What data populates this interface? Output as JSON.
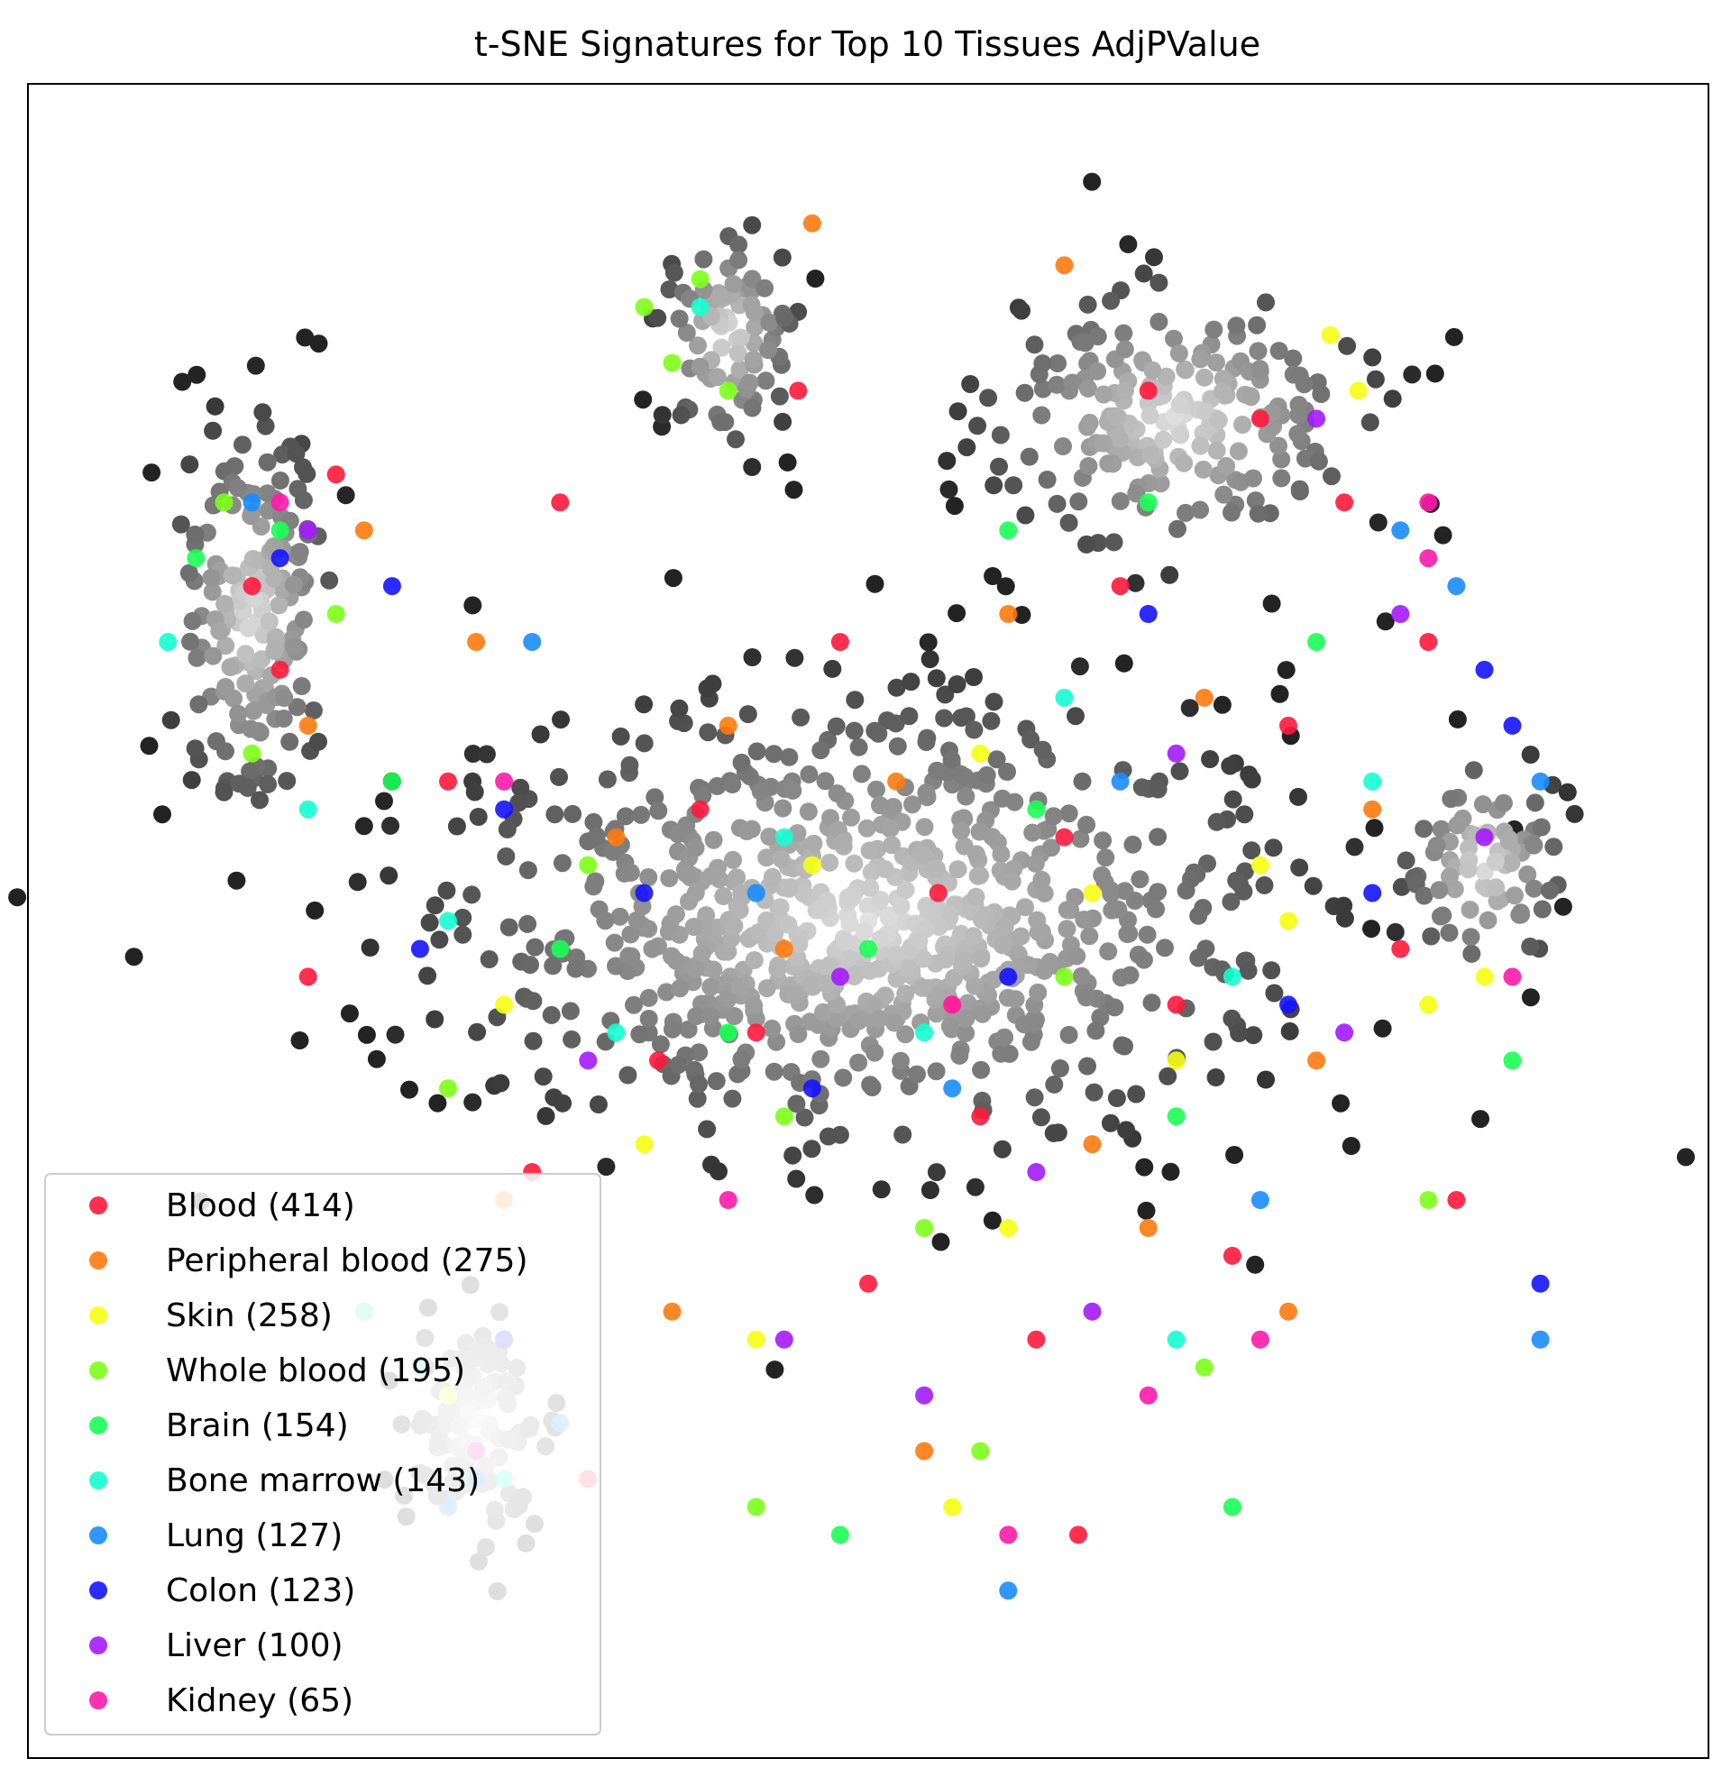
{
  "chart_data": {
    "type": "scatter",
    "title": "t-SNE Signatures for Top 10 Tissues AdjPValue",
    "xlabel": "",
    "ylabel": "",
    "axes_ticks": "none",
    "grid": false,
    "legend_position": "lower-left",
    "background_points": {
      "description_color": "grayscale",
      "note": "untagged signatures shown in gray shades"
    },
    "series": [
      {
        "name": "Blood (414)",
        "color": "#ff1a3c",
        "points": [
          [
            -38,
            32
          ],
          [
            -42,
            18
          ],
          [
            -40,
            -4
          ],
          [
            -22,
            30
          ],
          [
            -24,
            -18
          ],
          [
            -8,
            -8
          ],
          [
            -2,
            20
          ],
          [
            5,
            2
          ],
          [
            8,
            -14
          ],
          [
            14,
            6
          ],
          [
            18,
            24
          ],
          [
            22,
            -6
          ],
          [
            26,
            -24
          ],
          [
            30,
            14
          ],
          [
            34,
            30
          ],
          [
            38,
            -2
          ],
          [
            12,
            -30
          ],
          [
            -15,
            -10
          ],
          [
            -30,
            10
          ],
          [
            40,
            20
          ],
          [
            -5,
            38
          ],
          [
            20,
            38
          ],
          [
            0,
            -26
          ],
          [
            -12,
            8
          ],
          [
            -44,
            24
          ],
          [
            -20,
            -40
          ],
          [
            15,
            -44
          ],
          [
            -36,
            -28
          ],
          [
            28,
            36
          ],
          [
            42,
            -20
          ]
        ]
      },
      {
        "name": "Peripheral blood (275)",
        "color": "#ff7a0e",
        "points": [
          [
            -36,
            28
          ],
          [
            -28,
            20
          ],
          [
            -18,
            6
          ],
          [
            -10,
            14
          ],
          [
            2,
            10
          ],
          [
            6,
            -6
          ],
          [
            10,
            22
          ],
          [
            16,
            -16
          ],
          [
            24,
            16
          ],
          [
            32,
            -10
          ],
          [
            36,
            8
          ],
          [
            -6,
            -2
          ],
          [
            -26,
            -20
          ],
          [
            -14,
            -28
          ],
          [
            4,
            -38
          ],
          [
            -4,
            50
          ],
          [
            14,
            47
          ],
          [
            30,
            -28
          ],
          [
            -40,
            14
          ],
          [
            20,
            -22
          ]
        ]
      },
      {
        "name": "Skin (258)",
        "color": "#f6ff14",
        "points": [
          [
            -26,
            -6
          ],
          [
            -16,
            -16
          ],
          [
            -4,
            4
          ],
          [
            8,
            12
          ],
          [
            16,
            2
          ],
          [
            22,
            -10
          ],
          [
            28,
            4
          ],
          [
            33,
            42
          ],
          [
            35,
            38
          ],
          [
            30,
            0
          ],
          [
            -8,
            -30
          ],
          [
            10,
            -22
          ],
          [
            40,
            -6
          ],
          [
            44,
            -4
          ],
          [
            -30,
            -34
          ],
          [
            6,
            -42
          ]
        ]
      },
      {
        "name": "Whole blood (195)",
        "color": "#7dff1a",
        "points": [
          [
            -12,
            46
          ],
          [
            -16,
            44
          ],
          [
            -14,
            40
          ],
          [
            -10,
            38
          ],
          [
            -46,
            30
          ],
          [
            -44,
            12
          ],
          [
            -38,
            22
          ],
          [
            -20,
            4
          ],
          [
            -6,
            -14
          ],
          [
            4,
            -22
          ],
          [
            14,
            -4
          ],
          [
            24,
            -32
          ],
          [
            -30,
            -12
          ],
          [
            -8,
            -42
          ],
          [
            8,
            -38
          ],
          [
            40,
            -20
          ]
        ]
      },
      {
        "name": "Brain (154)",
        "color": "#1aff55",
        "points": [
          [
            -42,
            28
          ],
          [
            -34,
            10
          ],
          [
            -22,
            -2
          ],
          [
            -10,
            -8
          ],
          [
            0,
            -2
          ],
          [
            12,
            8
          ],
          [
            22,
            -14
          ],
          [
            32,
            20
          ],
          [
            20,
            30
          ],
          [
            46,
            -10
          ],
          [
            26,
            -42
          ],
          [
            -2,
            -44
          ],
          [
            -48,
            26
          ],
          [
            10,
            28
          ]
        ]
      },
      {
        "name": "Bone marrow (143)",
        "color": "#14ffd2",
        "points": [
          [
            -50,
            20
          ],
          [
            -40,
            8
          ],
          [
            -30,
            0
          ],
          [
            -18,
            -8
          ],
          [
            -6,
            6
          ],
          [
            4,
            -8
          ],
          [
            14,
            16
          ],
          [
            26,
            -4
          ],
          [
            36,
            10
          ],
          [
            -36,
            -28
          ],
          [
            -32,
            -32
          ],
          [
            -26,
            -40
          ],
          [
            22,
            -30
          ],
          [
            -12,
            44
          ]
        ]
      },
      {
        "name": "Lung (127)",
        "color": "#1a8cff",
        "points": [
          [
            -44,
            30
          ],
          [
            -24,
            20
          ],
          [
            -8,
            2
          ],
          [
            6,
            -12
          ],
          [
            18,
            10
          ],
          [
            28,
            -20
          ],
          [
            38,
            28
          ],
          [
            42,
            24
          ],
          [
            48,
            10
          ],
          [
            -30,
            -42
          ],
          [
            -28,
            -40
          ],
          [
            10,
            -48
          ],
          [
            -22,
            -36
          ],
          [
            48,
            -30
          ]
        ]
      },
      {
        "name": "Colon (123)",
        "color": "#1414ff",
        "points": [
          [
            -42,
            26
          ],
          [
            -32,
            -2
          ],
          [
            -16,
            2
          ],
          [
            -4,
            -12
          ],
          [
            10,
            -4
          ],
          [
            20,
            22
          ],
          [
            30,
            -6
          ],
          [
            36,
            2
          ],
          [
            46,
            14
          ],
          [
            -26,
            8
          ],
          [
            -34,
            24
          ],
          [
            -26,
            -30
          ],
          [
            48,
            -26
          ],
          [
            44,
            18
          ]
        ]
      },
      {
        "name": "Liver (100)",
        "color": "#a31aff",
        "points": [
          [
            -40,
            28
          ],
          [
            -20,
            -10
          ],
          [
            -2,
            -4
          ],
          [
            12,
            -18
          ],
          [
            22,
            12
          ],
          [
            34,
            -8
          ],
          [
            44,
            6
          ],
          [
            32,
            36
          ],
          [
            38,
            22
          ],
          [
            -6,
            -30
          ],
          [
            16,
            -28
          ],
          [
            4,
            -34
          ]
        ]
      },
      {
        "name": "Kidney (65)",
        "color": "#ff1aa8",
        "points": [
          [
            -42,
            30
          ],
          [
            -26,
            10
          ],
          [
            -10,
            -20
          ],
          [
            6,
            -6
          ],
          [
            20,
            -34
          ],
          [
            40,
            30
          ],
          [
            40,
            26
          ],
          [
            46,
            -4
          ],
          [
            -28,
            -38
          ],
          [
            10,
            -44
          ],
          [
            28,
            -30
          ]
        ]
      }
    ]
  }
}
